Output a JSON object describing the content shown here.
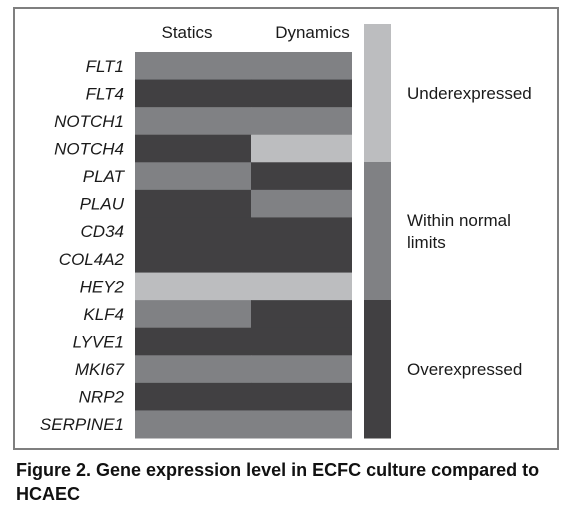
{
  "chart_data": {
    "type": "heatmap",
    "columns": [
      "Statics",
      "Dynamics"
    ],
    "rows": [
      "FLT1",
      "FLT4",
      "NOTCH1",
      "NOTCH4",
      "PLAT",
      "PLAU",
      "CD34",
      "COL4A2",
      "HEY2",
      "KLF4",
      "LYVE1",
      "MKI67",
      "NRP2",
      "SERPINE1"
    ],
    "levels": [
      "Underexpressed",
      "Within normal limits",
      "Overexpressed"
    ],
    "legend": [
      {
        "level": "Underexpressed",
        "label_lines": [
          "Underexpressed"
        ]
      },
      {
        "level": "Within normal limits",
        "label_lines": [
          "Within normal",
          "limits"
        ]
      },
      {
        "level": "Overexpressed",
        "label_lines": [
          "Overexpressed"
        ]
      }
    ],
    "values": [
      [
        "Within normal limits",
        "Within normal limits"
      ],
      [
        "Overexpressed",
        "Overexpressed"
      ],
      [
        "Within normal limits",
        "Within normal limits"
      ],
      [
        "Overexpressed",
        "Underexpressed"
      ],
      [
        "Within normal limits",
        "Overexpressed"
      ],
      [
        "Overexpressed",
        "Within normal limits"
      ],
      [
        "Overexpressed",
        "Overexpressed"
      ],
      [
        "Overexpressed",
        "Overexpressed"
      ],
      [
        "Underexpressed",
        "Underexpressed"
      ],
      [
        "Within normal limits",
        "Overexpressed"
      ],
      [
        "Overexpressed",
        "Overexpressed"
      ],
      [
        "Within normal limits",
        "Within normal limits"
      ],
      [
        "Overexpressed",
        "Overexpressed"
      ],
      [
        "Within normal limits",
        "Within normal limits"
      ]
    ],
    "colors": {
      "Underexpressed": "#bcbdbf",
      "Within normal limits": "#808184",
      "Overexpressed": "#414042"
    },
    "legend_position": "right"
  },
  "figure": {
    "caption": "Figure 2. Gene expression level in ECFC culture compared to HCAEC"
  }
}
